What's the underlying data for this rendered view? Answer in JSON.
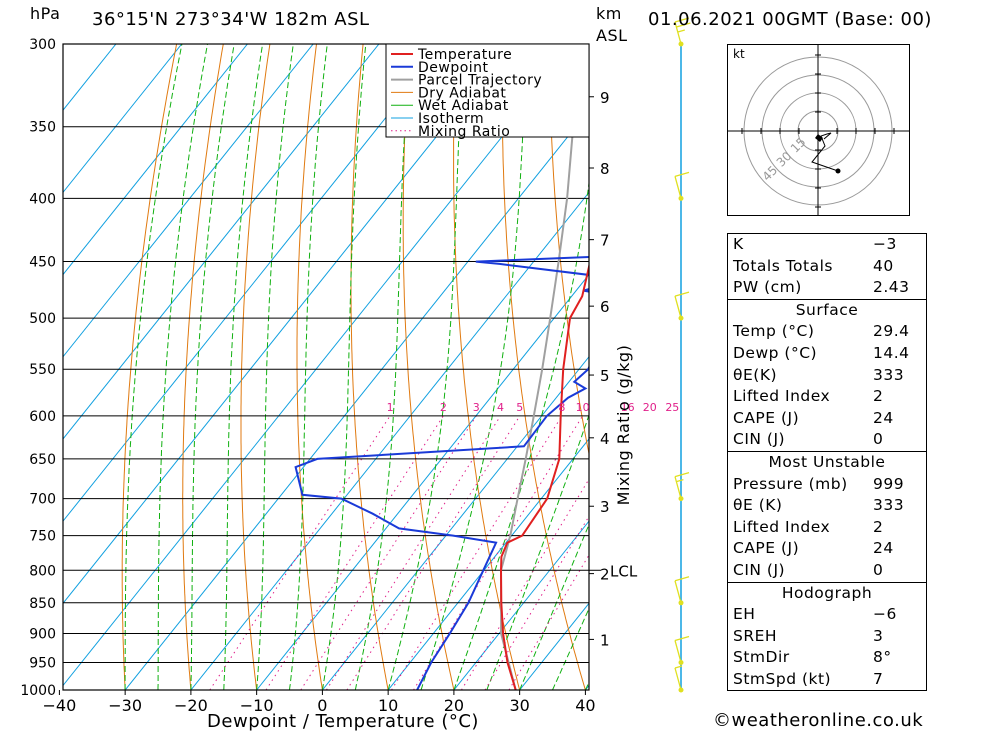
{
  "header": {
    "location": "36°15'N  273°34'W  182m  ASL",
    "datetime": "01.06.2021  00GMT  (Base: 00)",
    "hpa_label": "hPa",
    "km_label": "km",
    "asl_label": "ASL"
  },
  "colors": {
    "temperature": "#e02020",
    "dewpoint": "#1a3ad8",
    "parcel": "#a0a0a0",
    "dry_adiabat": "#e07a10",
    "wet_adiabat": "#10b010",
    "isotherm": "#10a0e0",
    "mixing_ratio": "#e0208a",
    "wind": "#e0e020"
  },
  "chart_data": {
    "type": "line",
    "title": "",
    "xlabel": "Dewpoint / Temperature (°C)",
    "ylabel": "hPa",
    "right_axis_label": "Mixing Ratio (g/kg)",
    "xlim": [
      -40,
      40
    ],
    "ylim": [
      1000,
      300
    ],
    "x_ticks": [
      "−40",
      "−30",
      "−20",
      "−10",
      "0",
      "10",
      "20",
      "30",
      "40"
    ],
    "pressure_levels": [
      300,
      350,
      400,
      450,
      500,
      550,
      600,
      650,
      700,
      750,
      800,
      850,
      900,
      950,
      1000
    ],
    "km_ticks": [
      {
        "label": "1",
        "p": 910
      },
      {
        "label": "2",
        "p": 805
      },
      {
        "label": "3",
        "p": 710
      },
      {
        "label": "4",
        "p": 625
      },
      {
        "label": "5",
        "p": 556
      },
      {
        "label": "6",
        "p": 489
      },
      {
        "label": "7",
        "p": 432
      },
      {
        "label": "8",
        "p": 378
      },
      {
        "label": "9",
        "p": 331
      }
    ],
    "lcl": {
      "label": "LCL",
      "p": 800
    },
    "mixing_ratio_labels": [
      "1",
      "2",
      "3",
      "4",
      "5",
      "8",
      "10",
      "16",
      "20",
      "25"
    ],
    "legend": {
      "position": "top-right",
      "entries": [
        "Temperature",
        "Dewpoint",
        "Parcel Trajectory",
        "Dry Adiabat",
        "Wet Adiabat",
        "Isotherm",
        "Mixing Ratio"
      ]
    },
    "temperature": [
      [
        1000,
        29.4
      ],
      [
        950,
        24.8
      ],
      [
        900,
        20.6
      ],
      [
        850,
        16.6
      ],
      [
        800,
        12.6
      ],
      [
        780,
        11.0
      ],
      [
        760,
        10.2
      ],
      [
        750,
        11.6
      ],
      [
        700,
        10.9
      ],
      [
        650,
        7.9
      ],
      [
        600,
        2.9
      ],
      [
        550,
        -2.4
      ],
      [
        500,
        -7.6
      ],
      [
        480,
        -8.4
      ],
      [
        450,
        -11.4
      ],
      [
        425,
        -14.0
      ],
      [
        400,
        -17.5
      ],
      [
        350,
        -25.5
      ],
      [
        300,
        -34.0
      ]
    ],
    "dewpoint": [
      [
        1000,
        14.4
      ],
      [
        950,
        13.2
      ],
      [
        900,
        12.5
      ],
      [
        850,
        11.6
      ],
      [
        800,
        9.9
      ],
      [
        760,
        8.5
      ],
      [
        750,
        1.1
      ],
      [
        740,
        -8.0
      ],
      [
        720,
        -13.8
      ],
      [
        700,
        -20.4
      ],
      [
        695,
        -26.8
      ],
      [
        660,
        -31.2
      ],
      [
        650,
        -28.9
      ],
      [
        635,
        1.0
      ],
      [
        600,
        0.8
      ],
      [
        580,
        1.8
      ],
      [
        570,
        3.3
      ],
      [
        563,
        0.8
      ],
      [
        550,
        1.4
      ],
      [
        520,
        -0.1
      ],
      [
        505,
        -2.3
      ],
      [
        495,
        -0.4
      ],
      [
        480,
        -3.4
      ],
      [
        475,
        -8.9
      ],
      [
        468,
        -5.4
      ],
      [
        465,
        -4.3
      ],
      [
        452,
        -24.9
      ],
      [
        450,
        -28.8
      ],
      [
        445,
        -7.3
      ],
      [
        435,
        -6.9
      ],
      [
        400,
        -11.4
      ],
      [
        390,
        -10.4
      ],
      [
        375,
        -12.9
      ],
      [
        350,
        -17.0
      ],
      [
        335,
        -17.8
      ],
      [
        323,
        -23.2
      ],
      [
        310,
        -29.0
      ],
      [
        300,
        -32.0
      ]
    ],
    "parcel": [
      [
        1000,
        29.4
      ],
      [
        900,
        20.3
      ],
      [
        800,
        12.6
      ],
      [
        750,
        9.8
      ],
      [
        700,
        6.4
      ],
      [
        650,
        2.8
      ],
      [
        600,
        -1.2
      ],
      [
        550,
        -5.6
      ],
      [
        500,
        -10.6
      ],
      [
        450,
        -16.2
      ],
      [
        400,
        -22.6
      ],
      [
        350,
        -30.4
      ],
      [
        300,
        -39.6
      ]
    ],
    "wind_barbs": [
      {
        "p": 1000,
        "speed_kt": 5
      },
      {
        "p": 950,
        "speed_kt": 10
      },
      {
        "p": 850,
        "speed_kt": 10
      },
      {
        "p": 700,
        "speed_kt": 15
      },
      {
        "p": 500,
        "speed_kt": 10
      },
      {
        "p": 400,
        "speed_kt": 10
      },
      {
        "p": 300,
        "speed_kt": 25
      }
    ]
  },
  "hodograph": {
    "unit_label": "kt",
    "ring_labels": [
      "15",
      "30",
      "45"
    ]
  },
  "indices": {
    "k_label": "K",
    "k_value": "−3",
    "tt_label": "Totals Totals",
    "tt_value": "40",
    "pw_label": "PW (cm)",
    "pw_value": "2.43",
    "surface_title": "Surface",
    "s_temp_label": "Temp (°C)",
    "s_temp_value": "29.4",
    "s_dewp_label": "Dewp (°C)",
    "s_dewp_value": "14.4",
    "s_thetae_label": "θE(K)",
    "s_thetae_value": "333",
    "s_li_label": "Lifted Index",
    "s_li_value": "2",
    "s_cape_label": "CAPE (J)",
    "s_cape_value": "24",
    "s_cin_label": "CIN (J)",
    "s_cin_value": "0",
    "mu_title": "Most Unstable",
    "mu_pres_label": "Pressure (mb)",
    "mu_pres_value": "999",
    "mu_thetae_label": "θE (K)",
    "mu_thetae_value": "333",
    "mu_li_label": "Lifted Index",
    "mu_li_value": "2",
    "mu_cape_label": "CAPE (J)",
    "mu_cape_value": "24",
    "mu_cin_label": "CIN (J)",
    "mu_cin_value": "0",
    "hodo_title": "Hodograph",
    "eh_label": "EH",
    "eh_value": "−6",
    "sreh_label": "SREH",
    "sreh_value": "3",
    "stmdir_label": "StmDir",
    "stmdir_value": "8°",
    "stmspd_label": "StmSpd (kt)",
    "stmspd_value": "7"
  },
  "copyright": "©weatheronline.co.uk"
}
